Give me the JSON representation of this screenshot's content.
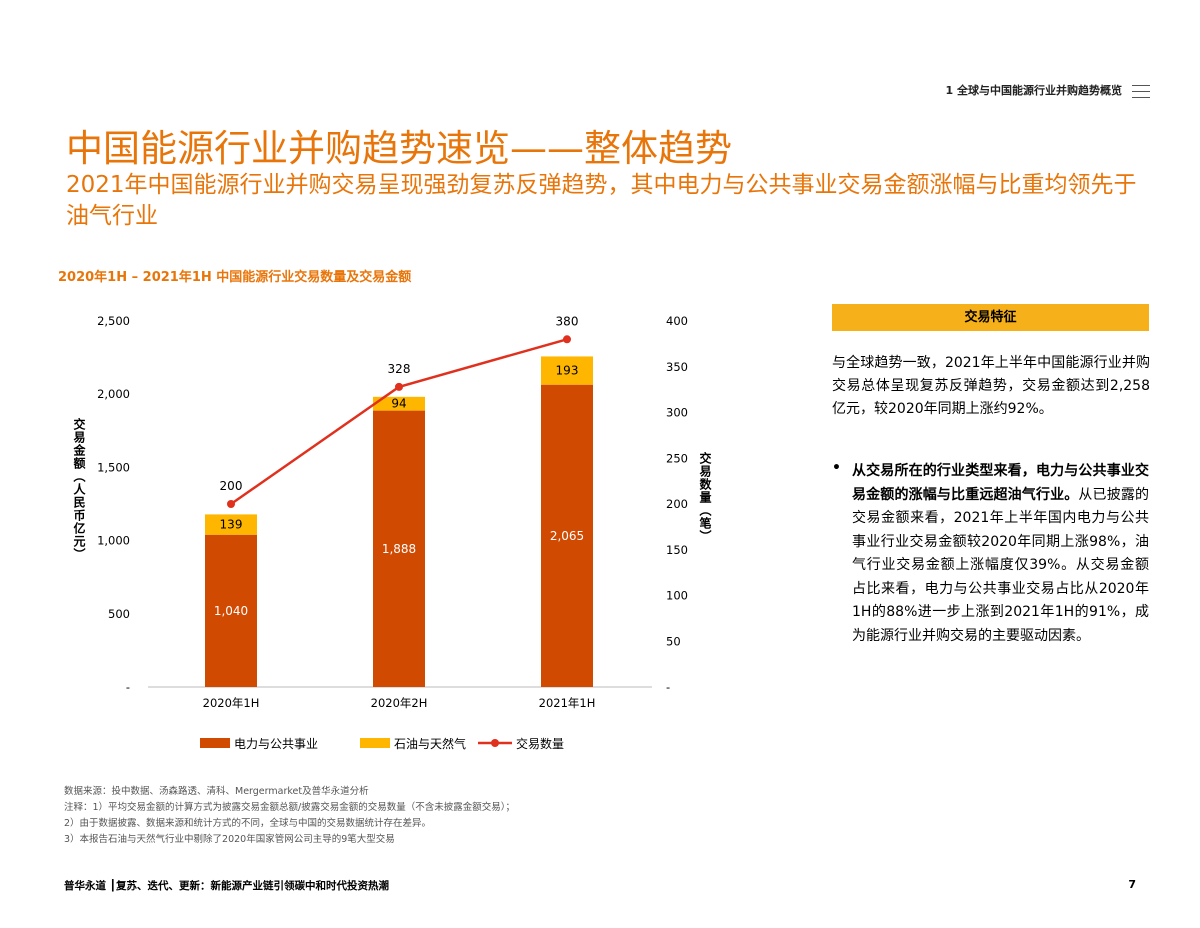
{
  "header": {
    "section": "1 全球与中国能源行业并购趋势概览",
    "title": "中国能源行业并购趋势速览——整体趋势",
    "subtitle": "2021年中国能源行业并购交易呈现强劲复苏反弹趋势，其中电力与公共事业交易金额涨幅与比重均领先于油气行业"
  },
  "chart_data": {
    "type": "bar",
    "title": "2020年1H – 2021年1H 中国能源行业交易数量及交易金额",
    "categories": [
      "2020年1H",
      "2020年2H",
      "2021年1H"
    ],
    "series": [
      {
        "name": "电力与公共事业",
        "type": "stacked-bar",
        "axis": "left",
        "color": "#d04a02",
        "values": [
          1040,
          1888,
          2065
        ]
      },
      {
        "name": "石油与天然气",
        "type": "stacked-bar",
        "axis": "left",
        "color": "#ffb600",
        "values": [
          139,
          94,
          193
        ]
      },
      {
        "name": "交易数量",
        "type": "line",
        "axis": "right",
        "color": "#e0301e",
        "values": [
          200,
          328,
          380
        ]
      }
    ],
    "ylabel": "交易金额（人民币亿元）",
    "y2label": "交易数量（笔）",
    "ylim": [
      0,
      2500
    ],
    "y2lim": [
      0,
      400
    ],
    "yticks": [
      "-",
      "500",
      "1,000",
      "1,500",
      "2,000",
      "2,500"
    ],
    "y2ticks": [
      "-",
      "50",
      "100",
      "150",
      "200",
      "250",
      "300",
      "350",
      "400"
    ],
    "bar_labels": [
      [
        "1,040",
        "1,888",
        "2,065"
      ],
      [
        "139",
        "94",
        "193"
      ]
    ],
    "line_labels": [
      "200",
      "328",
      "380"
    ],
    "legend": "bottom"
  },
  "panel": {
    "heading": "交易特征",
    "para1": "与全球趋势一致，2021年上半年中国能源行业并购交易总体呈现复苏反弹趋势，交易金额达到2,258亿元，较2020年同期上涨约92%。",
    "bullet": "•",
    "bold": "从交易所在的行业类型来看，电力与公共事业交易金额的涨幅与比重远超油气行业。",
    "para2": "从已披露的交易金额来看，2021年上半年国内电力与公共事业行业交易金额较2020年同期上涨98%，油气行业交易金额上涨幅度仅39%。从交易金额占比来看，电力与公共事业交易占比从2020年1H的88%进一步上涨到2021年1H的91%，成为能源行业并购交易的主要驱动因素。"
  },
  "notes": [
    "数据来源：投中数据、汤森路透、清科、Mergermarket及普华永道分析",
    "注释：1）平均交易金额的计算方式为披露交易金额总额/披露交易金额的交易数量（不含未披露金额交易）；",
    "2）由于数据披露、数据来源和统计方式的不同，全球与中国的交易数据统计存在差异。",
    "3）本报告石油与天然气行业中剔除了2020年国家管网公司主导的9笔大型交易"
  ],
  "footer": {
    "text": "普华永道 ┃复苏、迭代、更新：新能源产业链引领碳中和时代投资热潮",
    "page": "7"
  }
}
